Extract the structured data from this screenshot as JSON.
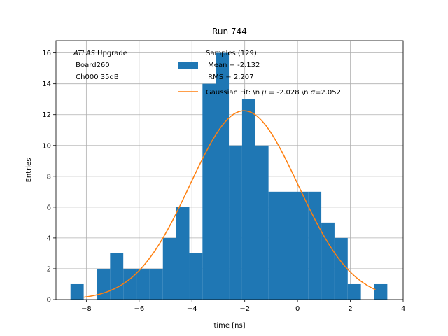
{
  "chart_data": {
    "type": "bar",
    "title": "Run 744",
    "xlabel": "time [ns]",
    "ylabel": "Entries",
    "xlim": [
      -9.15,
      4.0
    ],
    "ylim": [
      0,
      16.8
    ],
    "grid": true,
    "x_ticks": [
      -8,
      -6,
      -4,
      -2,
      0,
      2,
      4
    ],
    "y_ticks": [
      0,
      2,
      4,
      6,
      8,
      10,
      12,
      14,
      16
    ],
    "annotation": {
      "italic": "ATLAS",
      "rest": " Upgrade",
      "line2": " Board260",
      "line3": " Ch000 35dB"
    },
    "histogram": {
      "name": "Samples (129):",
      "mean_label": " Mean = -2.132",
      "rms_label": " RMS = 2.207",
      "color": "#1f77b4",
      "bin_edges": [
        -8.6,
        -8.1,
        -7.6,
        -7.1,
        -6.6,
        -6.1,
        -5.6,
        -5.1,
        -4.6,
        -4.1,
        -3.6,
        -3.1,
        -2.6,
        -2.1,
        -1.6,
        -1.1,
        -0.6,
        -0.1,
        0.4,
        0.9,
        1.4,
        1.9,
        2.4,
        2.9,
        3.4
      ],
      "counts": [
        1,
        0,
        2,
        3,
        2,
        2,
        2,
        4,
        6,
        3,
        14,
        16,
        10,
        13,
        10,
        7,
        7,
        7,
        7,
        5,
        4,
        1,
        0,
        1
      ]
    },
    "fit": {
      "name": "Gaussian Fit: \\n $\\mu$ = -2.028 \\n $\\sigma$=2.052",
      "label_prefix": "Gaussian Fit: \\n ",
      "mu_symbol": "μ",
      "mu_text": " = -2.028 \\n ",
      "sigma_symbol": "σ",
      "sigma_text": "=2.052",
      "color": "#ff7f0e",
      "mu": -2.028,
      "sigma": 2.052,
      "amplitude": 12.25,
      "x_range": [
        -8.1,
        2.95
      ]
    }
  }
}
